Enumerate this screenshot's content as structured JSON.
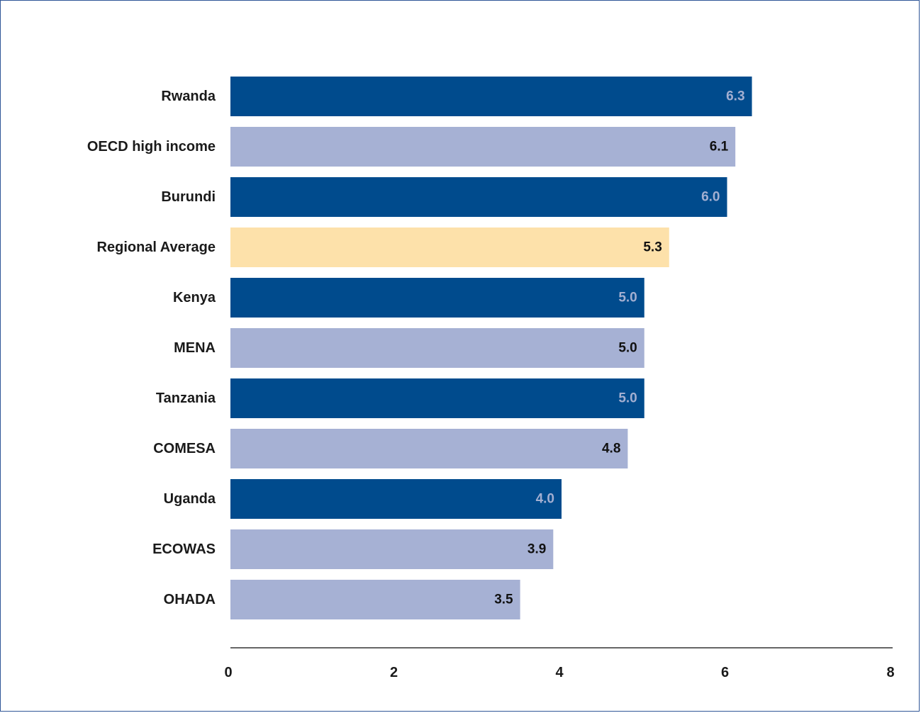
{
  "chart_data": {
    "type": "bar",
    "orientation": "horizontal",
    "title": "",
    "xlabel": "",
    "ylabel": "",
    "xlim": [
      0,
      8
    ],
    "x_ticks": [
      "0",
      "2",
      "4",
      "6",
      "8"
    ],
    "grid": false,
    "bars": [
      {
        "label": "Rwanda",
        "value": 6.3,
        "value_label": "6.3",
        "style": "economy"
      },
      {
        "label": "OECD high income",
        "value": 6.1,
        "value_label": "6.1",
        "style": "benchmark"
      },
      {
        "label": "Burundi",
        "value": 6.0,
        "value_label": "6.0",
        "style": "economy"
      },
      {
        "label": "Regional Average",
        "value": 5.3,
        "value_label": "5.3",
        "style": "average"
      },
      {
        "label": "Kenya",
        "value": 5.0,
        "value_label": "5.0",
        "style": "economy"
      },
      {
        "label": "MENA",
        "value": 5.0,
        "value_label": "5.0",
        "style": "benchmark"
      },
      {
        "label": "Tanzania",
        "value": 5.0,
        "value_label": "5.0",
        "style": "economy"
      },
      {
        "label": "COMESA",
        "value": 4.8,
        "value_label": "4.8",
        "style": "benchmark"
      },
      {
        "label": "Uganda",
        "value": 4.0,
        "value_label": "4.0",
        "style": "economy"
      },
      {
        "label": "ECOWAS",
        "value": 3.9,
        "value_label": "3.9",
        "style": "benchmark"
      },
      {
        "label": "OHADA",
        "value": 3.5,
        "value_label": "3.5",
        "style": "benchmark"
      }
    ]
  },
  "colors": {
    "economy_bar": "#004b8d",
    "economy_value_text": "#a3afd1",
    "benchmark_bar": "#a6b1d4",
    "benchmark_value_text": "#111111",
    "average_bar": "#fde1aa",
    "average_value_text": "#111111",
    "axis_line": "#333333",
    "frame_border": "#2f5597"
  }
}
